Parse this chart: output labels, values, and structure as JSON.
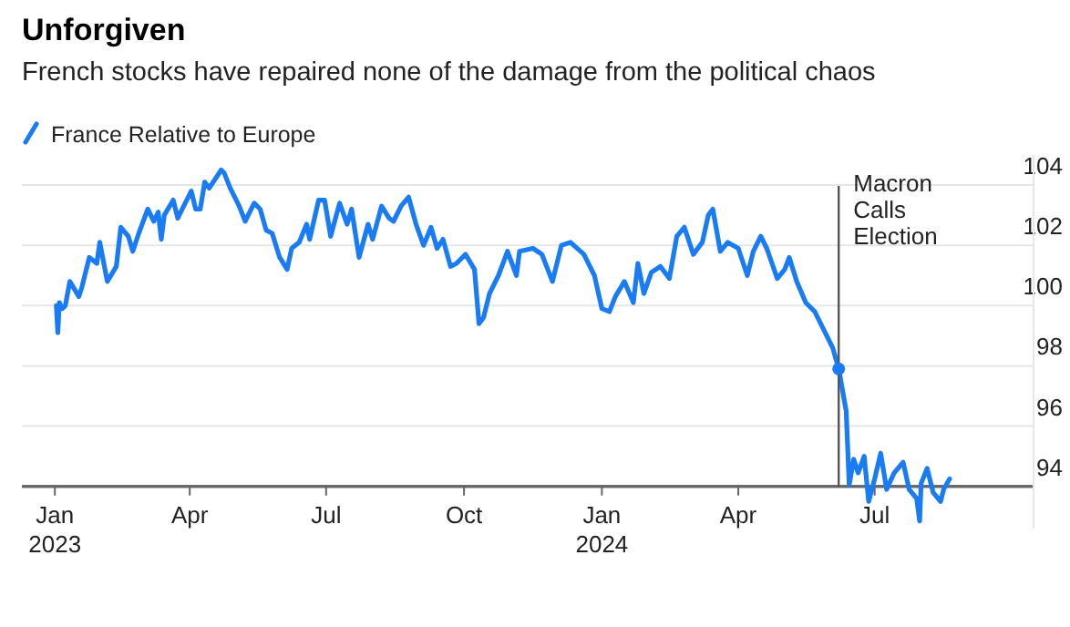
{
  "chart_data": {
    "type": "line",
    "title": "Unforgiven",
    "subtitle": "French stocks have repaired none of the damage from the political chaos",
    "x": [
      "2023-01-02",
      "2023-01-03",
      "2023-01-04",
      "2023-01-06",
      "2023-01-08",
      "2023-01-11",
      "2023-01-17",
      "2023-01-19",
      "2023-01-24",
      "2023-01-29",
      "2023-01-31",
      "2023-02-05",
      "2023-02-11",
      "2023-02-14",
      "2023-02-19",
      "2023-02-22",
      "2023-02-26",
      "2023-03-04",
      "2023-03-08",
      "2023-03-11",
      "2023-03-13",
      "2023-03-15",
      "2023-03-21",
      "2023-03-24",
      "2023-04-02",
      "2023-04-05",
      "2023-04-08",
      "2023-04-11",
      "2023-04-14",
      "2023-04-22",
      "2023-04-24",
      "2023-04-28",
      "2023-05-04",
      "2023-05-08",
      "2023-05-14",
      "2023-05-18",
      "2023-05-22",
      "2023-05-26",
      "2023-05-31",
      "2023-06-05",
      "2023-06-08",
      "2023-06-13",
      "2023-06-18",
      "2023-06-20",
      "2023-06-26",
      "2023-06-30",
      "2023-07-04",
      "2023-07-10",
      "2023-07-15",
      "2023-07-18",
      "2023-07-23",
      "2023-07-29",
      "2023-08-01",
      "2023-08-07",
      "2023-08-12",
      "2023-08-15",
      "2023-08-20",
      "2023-08-25",
      "2023-08-30",
      "2023-09-04",
      "2023-09-09",
      "2023-09-13",
      "2023-09-17",
      "2023-09-22",
      "2023-09-26",
      "2023-10-02",
      "2023-10-08",
      "2023-10-11",
      "2023-10-14",
      "2023-10-18",
      "2023-10-24",
      "2023-10-30",
      "2023-11-05",
      "2023-11-07",
      "2023-11-16",
      "2023-11-22",
      "2023-11-29",
      "2023-12-05",
      "2023-12-11",
      "2023-12-20",
      "2023-12-27",
      "2024-01-01",
      "2024-01-06",
      "2024-01-10",
      "2024-01-16",
      "2024-01-22",
      "2024-01-25",
      "2024-01-29",
      "2024-02-03",
      "2024-02-09",
      "2024-02-15",
      "2024-02-20",
      "2024-02-25",
      "2024-03-02",
      "2024-03-08",
      "2024-03-12",
      "2024-03-15",
      "2024-03-20",
      "2024-03-25",
      "2024-04-01",
      "2024-04-07",
      "2024-04-11",
      "2024-04-16",
      "2024-04-20",
      "2024-04-27",
      "2024-05-02",
      "2024-05-05",
      "2024-05-10",
      "2024-05-16",
      "2024-05-22",
      "2024-05-30",
      "2024-06-03",
      "2024-06-07",
      "2024-06-12",
      "2024-06-14",
      "2024-06-17",
      "2024-06-20",
      "2024-06-24",
      "2024-06-27",
      "2024-07-01",
      "2024-07-05",
      "2024-07-09",
      "2024-07-14",
      "2024-07-20",
      "2024-07-24",
      "2024-07-29",
      "2024-07-31",
      "2024-08-01",
      "2024-08-05",
      "2024-08-09",
      "2024-08-14",
      "2024-08-16",
      "2024-08-20"
    ],
    "series": [
      {
        "name": "France Relative to Europe",
        "color": "#1a7cf5",
        "values": [
          100.0,
          99.1,
          100.1,
          99.9,
          100.0,
          100.8,
          100.3,
          100.6,
          101.6,
          101.4,
          102.1,
          100.8,
          101.3,
          102.6,
          102.3,
          101.8,
          102.4,
          103.2,
          102.8,
          103.1,
          102.2,
          103.0,
          103.5,
          102.9,
          103.8,
          103.2,
          103.2,
          104.1,
          103.9,
          104.5,
          104.4,
          103.9,
          103.3,
          102.8,
          103.4,
          103.2,
          102.5,
          102.4,
          101.6,
          101.2,
          101.9,
          102.1,
          102.7,
          102.2,
          103.5,
          103.5,
          102.3,
          103.4,
          102.7,
          103.2,
          101.6,
          102.7,
          102.2,
          103.3,
          102.9,
          102.8,
          103.3,
          103.6,
          102.7,
          102.0,
          102.6,
          101.9,
          102.2,
          101.3,
          101.4,
          101.7,
          101.2,
          99.4,
          99.6,
          100.4,
          101.0,
          101.8,
          101.0,
          101.8,
          101.9,
          101.7,
          100.8,
          102.0,
          102.1,
          101.7,
          101.0,
          99.9,
          99.8,
          100.3,
          100.8,
          100.1,
          101.4,
          100.4,
          101.1,
          101.3,
          100.9,
          102.3,
          102.6,
          101.7,
          102.1,
          103.0,
          103.2,
          101.8,
          102.1,
          101.9,
          101.0,
          101.8,
          102.3,
          101.9,
          100.9,
          101.2,
          101.6,
          100.8,
          100.1,
          99.8,
          99.0,
          98.6,
          97.9,
          96.5,
          94.05,
          94.9,
          94.45,
          95.0,
          93.5,
          94.25,
          95.1,
          93.9,
          94.45,
          94.8,
          93.9,
          93.6,
          92.85,
          94.1,
          94.6,
          93.8,
          93.5,
          93.9,
          94.25
        ]
      }
    ],
    "xlim": [
      "2022-12-10",
      "2024-10-15"
    ],
    "xticks": [
      {
        "value": "2023-01-01",
        "label": "Jan 2023"
      },
      {
        "value": "2023-04-01",
        "label": "Apr"
      },
      {
        "value": "2023-07-01",
        "label": "Jul"
      },
      {
        "value": "2023-10-01",
        "label": "Oct"
      },
      {
        "value": "2024-01-01",
        "label": "Jan 2024"
      },
      {
        "value": "2024-04-01",
        "label": "Apr"
      },
      {
        "value": "2024-07-01",
        "label": "Jul"
      }
    ],
    "ylim": [
      92.6,
      105
    ],
    "yticks": [
      94,
      96,
      98,
      100,
      102,
      104
    ],
    "ref_lines": [
      {
        "axis": "x",
        "value": "2024-06-07",
        "label": "Macron Calls Election",
        "color": "#555555"
      }
    ],
    "grid": "y",
    "legend": "top left",
    "line_style": "solid",
    "marker": "none"
  }
}
